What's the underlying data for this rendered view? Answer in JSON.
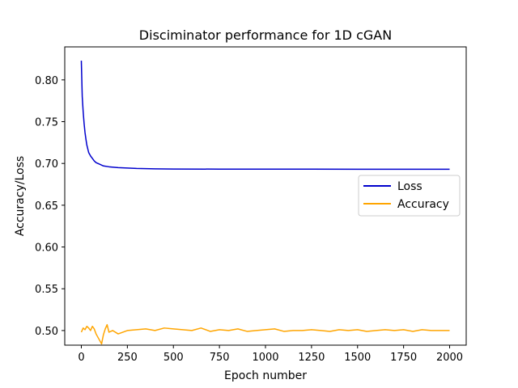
{
  "chart_data": {
    "type": "line",
    "title": "Disciminator performance for 1D cGAN",
    "xlabel": "Epoch number",
    "ylabel": "Accuracy/Loss",
    "xlim": [
      -90,
      2090
    ],
    "ylim": [
      0.4825,
      0.8395
    ],
    "xticks": [
      0,
      250,
      500,
      750,
      1000,
      1250,
      1500,
      1750,
      2000
    ],
    "xtick_labels": [
      "0",
      "250",
      "500",
      "750",
      "1000",
      "1250",
      "1500",
      "1750",
      "2000"
    ],
    "yticks": [
      0.5,
      0.55,
      0.6,
      0.65,
      0.7,
      0.75,
      0.8
    ],
    "ytick_labels": [
      "0.50",
      "0.55",
      "0.60",
      "0.65",
      "0.70",
      "0.75",
      "0.80"
    ],
    "grid": false,
    "legend_position": "center-right",
    "series": [
      {
        "name": "Loss",
        "color": "#0000cd",
        "x": [
          0,
          5,
          10,
          15,
          20,
          25,
          30,
          40,
          50,
          60,
          70,
          80,
          100,
          120,
          150,
          200,
          250,
          300,
          400,
          500,
          750,
          1000,
          1250,
          1500,
          1750,
          2000
        ],
        "y": [
          0.823,
          0.78,
          0.762,
          0.748,
          0.737,
          0.729,
          0.722,
          0.713,
          0.709,
          0.706,
          0.703,
          0.701,
          0.699,
          0.697,
          0.696,
          0.695,
          0.6945,
          0.694,
          0.6935,
          0.6933,
          0.6932,
          0.6932,
          0.6932,
          0.6931,
          0.6931,
          0.6931
        ]
      },
      {
        "name": "Accuracy",
        "color": "#ffa500",
        "x": [
          0,
          10,
          20,
          30,
          40,
          50,
          60,
          70,
          80,
          90,
          100,
          110,
          120,
          130,
          140,
          150,
          170,
          200,
          250,
          300,
          350,
          400,
          450,
          500,
          550,
          600,
          650,
          700,
          750,
          800,
          850,
          900,
          950,
          1000,
          1050,
          1100,
          1150,
          1200,
          1250,
          1300,
          1350,
          1400,
          1450,
          1500,
          1550,
          1600,
          1650,
          1700,
          1750,
          1800,
          1850,
          1900,
          1950,
          2000
        ],
        "y": [
          0.498,
          0.503,
          0.501,
          0.505,
          0.503,
          0.5,
          0.505,
          0.502,
          0.496,
          0.492,
          0.488,
          0.484,
          0.495,
          0.502,
          0.507,
          0.498,
          0.5,
          0.496,
          0.5,
          0.501,
          0.502,
          0.5,
          0.503,
          0.502,
          0.501,
          0.5,
          0.503,
          0.499,
          0.501,
          0.5,
          0.502,
          0.499,
          0.5,
          0.501,
          0.502,
          0.499,
          0.5,
          0.5,
          0.501,
          0.5,
          0.499,
          0.501,
          0.5,
          0.501,
          0.499,
          0.5,
          0.501,
          0.5,
          0.501,
          0.499,
          0.501,
          0.5,
          0.5,
          0.5
        ]
      }
    ]
  }
}
